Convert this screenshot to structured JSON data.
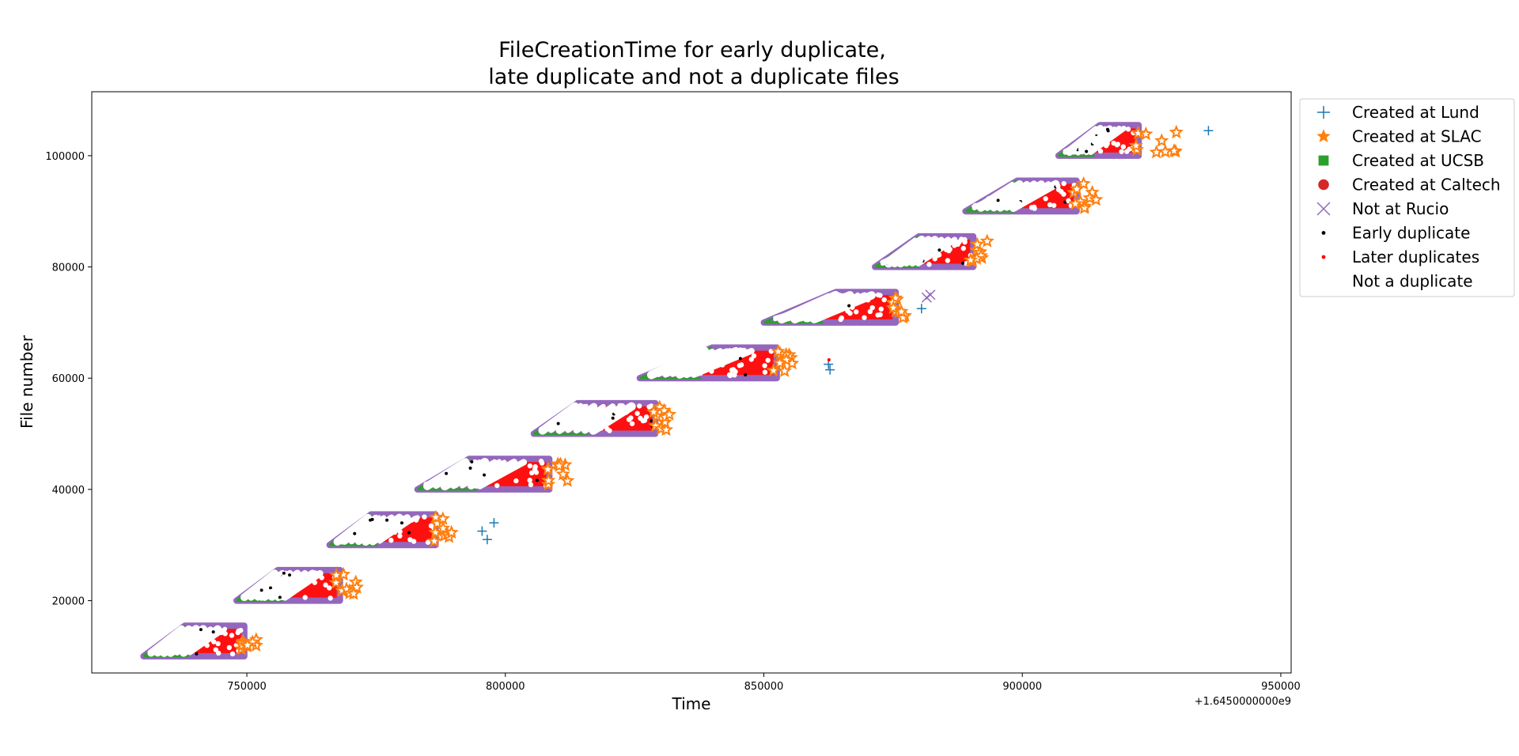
{
  "chart_data": {
    "type": "scatter",
    "title_lines": [
      "FileCreationTime for early duplicate,",
      "late duplicate and not a duplicate files"
    ],
    "xlabel": "Time",
    "ylabel": "File number",
    "x_offset_label": "+1.6450000000e9",
    "xlim": [
      720000,
      952000
    ],
    "ylim": [
      7000,
      111500
    ],
    "x_ticks": [
      750000,
      800000,
      850000,
      900000,
      950000
    ],
    "x_tick_labels": [
      "750000",
      "800000",
      "850000",
      "900000",
      "950000"
    ],
    "y_ticks": [
      20000,
      40000,
      60000,
      80000,
      100000
    ],
    "y_tick_labels": [
      "20000",
      "40000",
      "60000",
      "80000",
      "100000"
    ],
    "legend_position": "outside right",
    "legend": [
      {
        "label": "Created at Lund",
        "marker": "plus",
        "color": "#1f77b4"
      },
      {
        "label": "Created at SLAC",
        "marker": "star",
        "color": "#ff7f0e"
      },
      {
        "label": "Created at UCSB",
        "marker": "square",
        "color": "#2ca02c"
      },
      {
        "label": "Created at Caltech",
        "marker": "circle",
        "color": "#d62728"
      },
      {
        "label": "Not at Rucio",
        "marker": "x",
        "color": "#9467bd"
      },
      {
        "label": "Early duplicate",
        "marker": "dot",
        "color": "#000000"
      },
      {
        "label": "Later duplicates",
        "marker": "dot",
        "color": "#ff0000"
      },
      {
        "label": "Not a duplicate",
        "marker": "dot",
        "color": "#ffffff"
      }
    ],
    "batches": [
      {
        "file_start": 10000,
        "file_end": 15500,
        "t_start": 730000,
        "t_ramp_end": 738000,
        "t_body_end": 749500,
        "t_tail_end": 751500
      },
      {
        "file_start": 20000,
        "file_end": 25500,
        "t_start": 748000,
        "t_ramp_end": 756000,
        "t_body_end": 768000,
        "t_tail_end": 771000
      },
      {
        "file_start": 30000,
        "file_end": 35500,
        "t_start": 766000,
        "t_ramp_end": 774000,
        "t_body_end": 786500,
        "t_tail_end": 789500
      },
      {
        "file_start": 40000,
        "file_end": 45500,
        "t_start": 783000,
        "t_ramp_end": 793000,
        "t_body_end": 808500,
        "t_tail_end": 812000
      },
      {
        "file_start": 50000,
        "file_end": 55500,
        "t_start": 805500,
        "t_ramp_end": 814000,
        "t_body_end": 829000,
        "t_tail_end": 831500
      },
      {
        "file_start": 60000,
        "file_end": 65500,
        "t_start": 826000,
        "t_ramp_end": 840000,
        "t_body_end": 852500,
        "t_tail_end": 855500
      },
      {
        "file_start": 70000,
        "file_end": 75500,
        "t_start": 850000,
        "t_ramp_end": 864000,
        "t_body_end": 875500,
        "t_tail_end": 877000
      },
      {
        "file_start": 80000,
        "file_end": 85500,
        "t_start": 871500,
        "t_ramp_end": 880000,
        "t_body_end": 890500,
        "t_tail_end": 893000
      },
      {
        "file_start": 90000,
        "file_end": 95500,
        "t_start": 889000,
        "t_ramp_end": 899000,
        "t_body_end": 910500,
        "t_tail_end": 914000
      },
      {
        "file_start": 100000,
        "file_end": 105500,
        "t_start": 907000,
        "t_ramp_end": 915000,
        "t_body_end": 922500,
        "t_tail_end": 931000
      }
    ],
    "outliers": [
      {
        "x": 795500,
        "y": 32500,
        "type": "Created at Lund"
      },
      {
        "x": 797800,
        "y": 34000,
        "type": "Created at Lund"
      },
      {
        "x": 796500,
        "y": 31000,
        "type": "Created at Lund"
      },
      {
        "x": 862500,
        "y": 62500,
        "type": "Created at Lund"
      },
      {
        "x": 862800,
        "y": 61500,
        "type": "Created at Lund"
      },
      {
        "x": 862600,
        "y": 63300,
        "type": "Later duplicates"
      },
      {
        "x": 880500,
        "y": 72500,
        "type": "Created at Lund"
      },
      {
        "x": 881500,
        "y": 74500,
        "type": "Not at Rucio"
      },
      {
        "x": 882200,
        "y": 75000,
        "type": "Not at Rucio"
      },
      {
        "x": 936000,
        "y": 104500,
        "type": "Created at Lund"
      }
    ]
  }
}
